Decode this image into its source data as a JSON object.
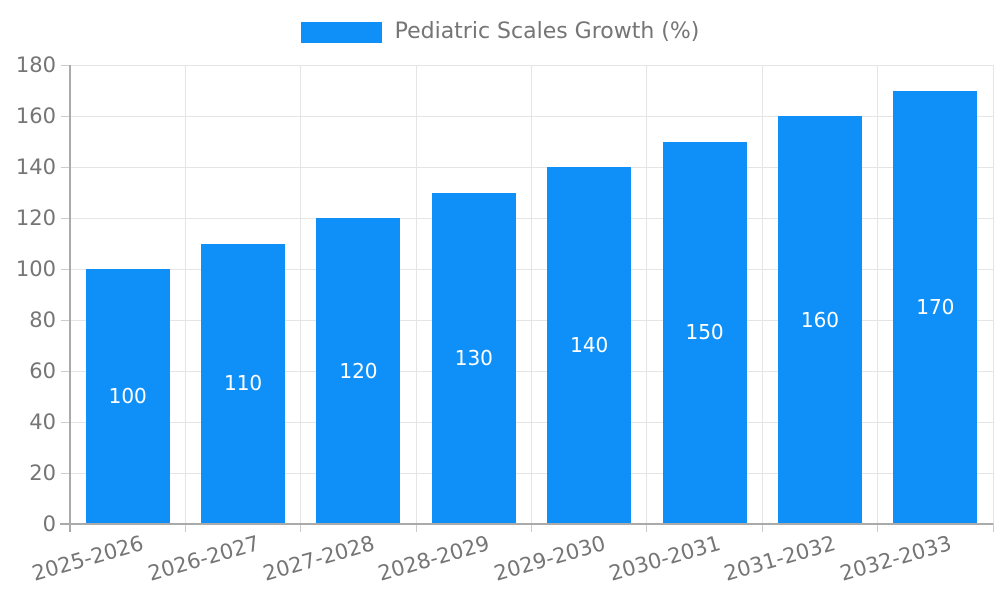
{
  "chart_data": {
    "type": "bar",
    "title": "Pediatric Scales Growth (%)",
    "legend_entries": [
      "Pediatric Scales Growth (%)"
    ],
    "legend_position": "top-center",
    "categories": [
      "2025-2026",
      "2026-2027",
      "2027-2028",
      "2028-2029",
      "2029-2030",
      "2030-2031",
      "2031-2032",
      "2032-2033"
    ],
    "values": [
      100,
      110,
      120,
      130,
      140,
      150,
      160,
      170
    ],
    "bar_labels_visible": true,
    "xlabel": "",
    "ylabel": "",
    "ylim": [
      0,
      180
    ],
    "yticks": [
      0,
      20,
      40,
      60,
      80,
      100,
      120,
      140,
      160,
      180
    ],
    "grid": true,
    "x_label_rotation_deg": -16
  },
  "colors": {
    "bar": "#0e90f8",
    "grid": "#e5e5e5",
    "axis": "#aaaaaa",
    "tick": "#cccccc",
    "text": "#757575",
    "bar_label": "#ffffff",
    "background": "#ffffff"
  }
}
